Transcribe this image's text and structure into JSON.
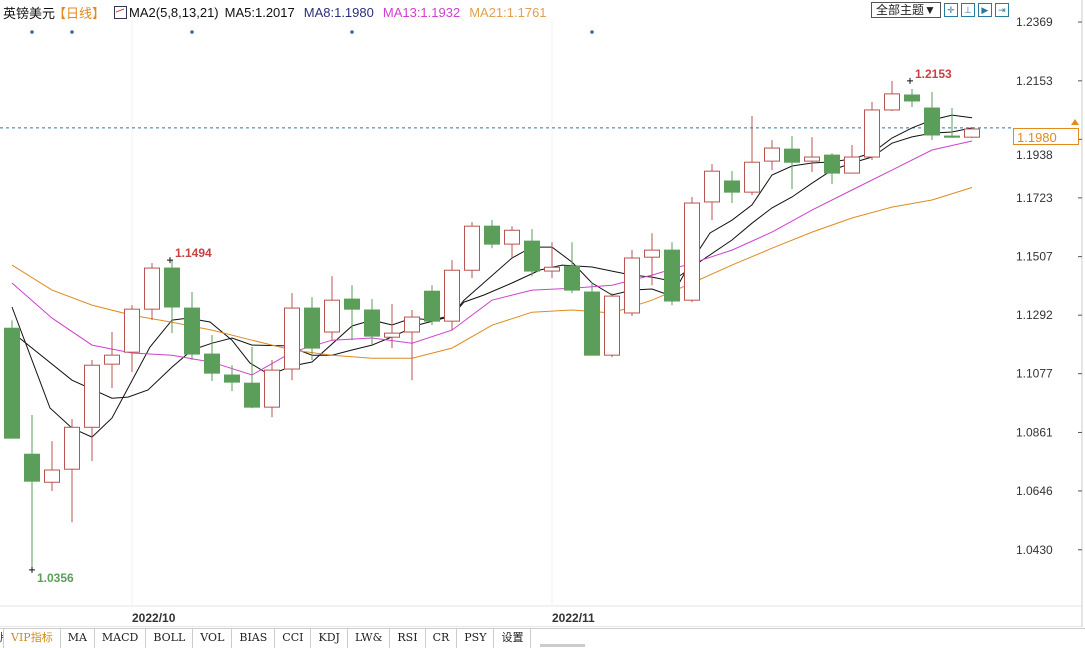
{
  "header": {
    "symbol": "英镑美元",
    "period": "【日线】",
    "ma_title": "MA2(5,8,13,21)",
    "ma5": "MA5:1.2017",
    "ma8": "MA8:1.1980",
    "ma13": "MA13:1.1932",
    "ma21": "MA21:1.1761",
    "theme_button": "全部主题▼",
    "tools": [
      "crosshair-icon",
      "zoom-in-icon",
      "step-icon",
      "move-right-icon"
    ]
  },
  "colors": {
    "up": "#b85450",
    "down": "#5a9e5a",
    "ma5": "#111111",
    "ma8": "#111111",
    "ma13": "#d040d0",
    "ma21": "#e08a20",
    "price_line": "#2a7aa0"
  },
  "current_price": "1.1980",
  "tabs": [
    "版",
    "VIP指标",
    "MA",
    "MACD",
    "BOLL",
    "VOL",
    "BIAS",
    "CCI",
    "KDJ",
    "LW&",
    "RSI",
    "CR",
    "PSY",
    "设置"
  ],
  "chart_data": {
    "type": "candlestick",
    "title": "英镑美元 日线",
    "y_ticks": [
      "1.2369",
      "1.2153",
      "1.1938",
      "1.1723",
      "1.1507",
      "1.1292",
      "1.1077",
      "1.0861",
      "1.0646",
      "1.0430"
    ],
    "ylim": [
      1.0227,
      1.245
    ],
    "x_labels": [
      {
        "index": 6,
        "label": "2022/10"
      },
      {
        "index": 27,
        "label": "2022/11"
      }
    ],
    "event_markers": [
      1,
      3,
      9,
      17,
      29
    ],
    "annotations": [
      {
        "index": 44.9,
        "price": 1.2153,
        "label": "1.2153",
        "kind": "high"
      },
      {
        "index": 7.9,
        "price": 1.1494,
        "label": "1.1494",
        "kind": "high"
      },
      {
        "index": 1,
        "price": 1.0356,
        "label": "1.0356",
        "kind": "low"
      }
    ],
    "ohlc": [
      [
        1.1244,
        1.1273,
        1.084,
        1.084
      ],
      [
        1.0781,
        1.0925,
        1.0356,
        1.0682
      ],
      [
        1.0678,
        1.0829,
        1.0646,
        1.0723
      ],
      [
        1.0726,
        1.091,
        1.0531,
        1.088
      ],
      [
        1.088,
        1.1127,
        1.0756,
        1.1108
      ],
      [
        1.1112,
        1.123,
        1.1024,
        1.1145
      ],
      [
        1.1156,
        1.1329,
        1.1083,
        1.1314
      ],
      [
        1.1314,
        1.1483,
        1.1274,
        1.1465
      ],
      [
        1.1465,
        1.1494,
        1.1226,
        1.1322
      ],
      [
        1.1318,
        1.1377,
        1.1127,
        1.1149
      ],
      [
        1.1149,
        1.1219,
        1.105,
        1.1079
      ],
      [
        1.1072,
        1.1108,
        1.1013,
        1.1046
      ],
      [
        1.1042,
        1.1175,
        1.095,
        1.0954
      ],
      [
        1.0954,
        1.1127,
        1.0917,
        1.109
      ],
      [
        1.1094,
        1.1373,
        1.1053,
        1.1318
      ],
      [
        1.1318,
        1.1358,
        1.1127,
        1.1171
      ],
      [
        1.123,
        1.1435,
        1.12,
        1.1347
      ],
      [
        1.1351,
        1.1402,
        1.12,
        1.1314
      ],
      [
        1.1311,
        1.1351,
        1.1182,
        1.1215
      ],
      [
        1.1211,
        1.1333,
        1.1171,
        1.1226
      ],
      [
        1.123,
        1.1311,
        1.1053,
        1.1285
      ],
      [
        1.138,
        1.1402,
        1.1256,
        1.127
      ],
      [
        1.127,
        1.1494,
        1.1237,
        1.1457
      ],
      [
        1.1457,
        1.1634,
        1.1428,
        1.1619
      ],
      [
        1.1619,
        1.1641,
        1.1538,
        1.1553
      ],
      [
        1.1553,
        1.1619,
        1.1502,
        1.1604
      ],
      [
        1.1564,
        1.1608,
        1.1435,
        1.1454
      ],
      [
        1.1454,
        1.156,
        1.1428,
        1.1468
      ],
      [
        1.1472,
        1.156,
        1.1373,
        1.1384
      ],
      [
        1.1377,
        1.1413,
        1.1145,
        1.1145
      ],
      [
        1.1145,
        1.1373,
        1.1138,
        1.1362
      ],
      [
        1.13,
        1.1531,
        1.1289,
        1.1502
      ],
      [
        1.1505,
        1.1593,
        1.1402,
        1.1531
      ],
      [
        1.1531,
        1.156,
        1.1329,
        1.1344
      ],
      [
        1.1347,
        1.1726,
        1.134,
        1.1704
      ],
      [
        1.1708,
        1.1847,
        1.1641,
        1.1821
      ],
      [
        1.1785,
        1.1821,
        1.1704,
        1.1744
      ],
      [
        1.1744,
        1.2024,
        1.1733,
        1.1854
      ],
      [
        1.1858,
        1.1935,
        1.1825,
        1.1906
      ],
      [
        1.1902,
        1.195,
        1.1755,
        1.1854
      ],
      [
        1.1858,
        1.1946,
        1.1818,
        1.1873
      ],
      [
        1.188,
        1.1887,
        1.1774,
        1.1814
      ],
      [
        1.1814,
        1.1917,
        1.1814,
        1.1873
      ],
      [
        1.1873,
        1.2075,
        1.1862,
        1.2046
      ],
      [
        1.2046,
        1.2153,
        1.2042,
        1.2105
      ],
      [
        1.2101,
        1.2123,
        1.2057,
        1.2079
      ],
      [
        1.2053,
        1.2112,
        1.1935,
        1.1954
      ],
      [
        1.195,
        1.2053,
        1.1943,
        1.1946
      ],
      [
        1.1946,
        1.1983,
        1.1943,
        1.1976
      ]
    ],
    "series": [
      {
        "name": "MA5",
        "points": [
          [
            0,
            1.1322
          ],
          [
            1.9,
            1.0951
          ],
          [
            3,
            1.0877
          ],
          [
            4,
            1.0844
          ],
          [
            5,
            1.0914
          ],
          [
            6.9,
            1.1175
          ],
          [
            8,
            1.1274
          ],
          [
            8.8,
            1.1281
          ],
          [
            9.9,
            1.1267
          ],
          [
            11,
            1.12
          ],
          [
            11.9,
            1.1116
          ],
          [
            12.9,
            1.1072
          ],
          [
            14,
            1.1105
          ],
          [
            15,
            1.112
          ],
          [
            17,
            1.1252
          ],
          [
            18,
            1.1274
          ],
          [
            19,
            1.1256
          ],
          [
            20,
            1.1281
          ],
          [
            21,
            1.1274
          ],
          [
            22,
            1.1292
          ],
          [
            22.6,
            1.1347
          ],
          [
            25,
            1.1502
          ],
          [
            26,
            1.1542
          ],
          [
            27,
            1.1542
          ],
          [
            28,
            1.1487
          ],
          [
            29,
            1.141
          ],
          [
            30,
            1.1366
          ],
          [
            31,
            1.1384
          ],
          [
            32,
            1.1388
          ],
          [
            33,
            1.1362
          ],
          [
            33.8,
            1.1469
          ],
          [
            34.9,
            1.1594
          ],
          [
            36,
            1.1641
          ],
          [
            37,
            1.1697
          ],
          [
            38,
            1.1807
          ],
          [
            39,
            1.184
          ],
          [
            40,
            1.1851
          ],
          [
            41,
            1.1855
          ],
          [
            42,
            1.1866
          ],
          [
            43,
            1.1888
          ],
          [
            44,
            1.1943
          ],
          [
            45,
            1.198
          ],
          [
            46,
            1.2009
          ],
          [
            47,
            1.2027
          ],
          [
            48,
            1.2017
          ]
        ]
      },
      {
        "name": "MA8",
        "points": [
          [
            0,
            1.123
          ],
          [
            3,
            1.1053
          ],
          [
            5,
            1.0987
          ],
          [
            5.8,
            1.0991
          ],
          [
            6.8,
            1.1017
          ],
          [
            8,
            1.1101
          ],
          [
            9,
            1.1164
          ],
          [
            10,
            1.1189
          ],
          [
            11,
            1.1208
          ],
          [
            12,
            1.1182
          ],
          [
            13.8,
            1.1179
          ],
          [
            15,
            1.1145
          ],
          [
            16,
            1.1145
          ],
          [
            17,
            1.1164
          ],
          [
            18,
            1.1182
          ],
          [
            19,
            1.1212
          ],
          [
            20.3,
            1.1256
          ],
          [
            22,
            1.1289
          ],
          [
            22.6,
            1.134
          ],
          [
            23.6,
            1.1366
          ],
          [
            25,
            1.141
          ],
          [
            26.4,
            1.1458
          ],
          [
            27.5,
            1.1476
          ],
          [
            29,
            1.1469
          ],
          [
            30,
            1.1454
          ],
          [
            31,
            1.1439
          ],
          [
            32,
            1.1432
          ],
          [
            33,
            1.1417
          ],
          [
            34.75,
            1.1506
          ],
          [
            36,
            1.1568
          ],
          [
            37,
            1.163
          ],
          [
            38,
            1.1686
          ],
          [
            39,
            1.1726
          ],
          [
            40,
            1.1777
          ],
          [
            41,
            1.1825
          ],
          [
            42,
            1.1851
          ],
          [
            43,
            1.1873
          ],
          [
            44,
            1.1924
          ],
          [
            45,
            1.1947
          ],
          [
            46,
            1.1961
          ],
          [
            47,
            1.1965
          ],
          [
            48,
            1.198
          ]
        ]
      },
      {
        "name": "MA13",
        "points": [
          [
            0,
            1.141
          ],
          [
            2,
            1.1281
          ],
          [
            4,
            1.1182
          ],
          [
            6,
            1.1153
          ],
          [
            8,
            1.1145
          ],
          [
            10,
            1.1119
          ],
          [
            12,
            1.1072
          ],
          [
            14,
            1.1156
          ],
          [
            16,
            1.12
          ],
          [
            18,
            1.1208
          ],
          [
            20,
            1.1189
          ],
          [
            22,
            1.1237
          ],
          [
            24,
            1.1347
          ],
          [
            26,
            1.1384
          ],
          [
            28,
            1.1391
          ],
          [
            30,
            1.1402
          ],
          [
            32,
            1.1439
          ],
          [
            34,
            1.1483
          ],
          [
            36,
            1.1531
          ],
          [
            38,
            1.1597
          ],
          [
            40,
            1.1678
          ],
          [
            42,
            1.1752
          ],
          [
            44,
            1.1825
          ],
          [
            46,
            1.1899
          ],
          [
            48,
            1.1932
          ]
        ]
      },
      {
        "name": "MA21",
        "points": [
          [
            0,
            1.1476
          ],
          [
            2,
            1.1384
          ],
          [
            4,
            1.1329
          ],
          [
            6,
            1.1292
          ],
          [
            8,
            1.1266
          ],
          [
            10,
            1.1237
          ],
          [
            12,
            1.12
          ],
          [
            14,
            1.1164
          ],
          [
            16,
            1.1145
          ],
          [
            18,
            1.1134
          ],
          [
            20,
            1.1134
          ],
          [
            22,
            1.1171
          ],
          [
            24,
            1.1255
          ],
          [
            26,
            1.1303
          ],
          [
            28,
            1.1311
          ],
          [
            30,
            1.13
          ],
          [
            32,
            1.1347
          ],
          [
            34,
            1.141
          ],
          [
            36,
            1.1476
          ],
          [
            38,
            1.1538
          ],
          [
            40,
            1.1597
          ],
          [
            42,
            1.1649
          ],
          [
            44,
            1.1689
          ],
          [
            46,
            1.1715
          ],
          [
            48,
            1.1761
          ]
        ]
      }
    ]
  }
}
